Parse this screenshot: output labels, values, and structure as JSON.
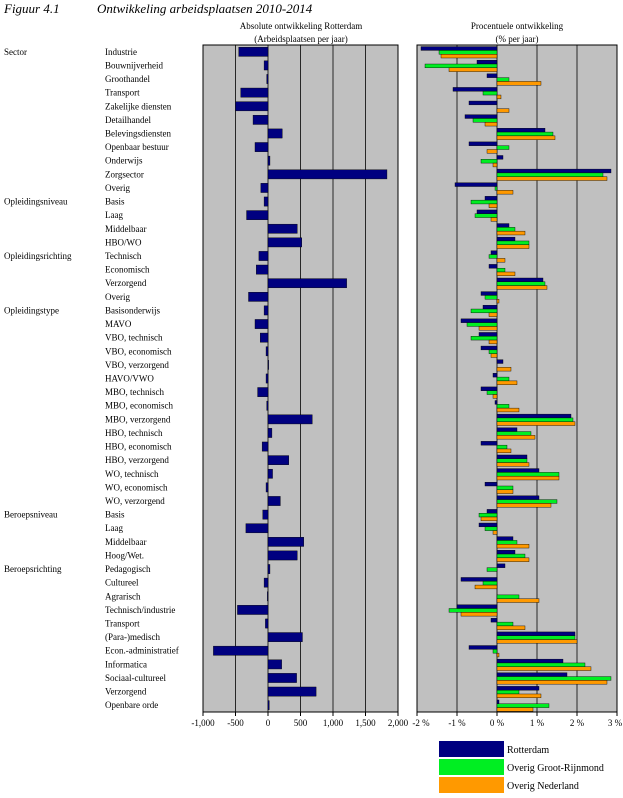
{
  "figure": {
    "label": "Figuur 4.1",
    "title": "Ontwikkeling arbeidsplaatsen 2010-2014"
  },
  "colors": {
    "rotterdam": "#000080",
    "groot_rijnmond": "#00ee22",
    "nederland": "#ff9900",
    "plot_bg": "#c0c0c0"
  },
  "chart_data": [
    {
      "type": "bar",
      "orientation": "horizontal",
      "title": "Absolute ontwikkeling Rotterdam",
      "subtitle": "(Arbeidsplaatsen per jaar)",
      "xlim": [
        -1000,
        2000
      ],
      "xticks": [
        "-1,000",
        "-500",
        "0",
        "500",
        "1,000",
        "1,500",
        "2,000"
      ],
      "xtick_values": [
        -1000,
        -500,
        0,
        500,
        1000,
        1500,
        2000
      ],
      "grid": true,
      "series": [
        {
          "name": "Rotterdam",
          "values": [
            -450,
            -60,
            -20,
            -420,
            -500,
            -230,
            220,
            -200,
            30,
            1830,
            -110,
            -60,
            -330,
            450,
            520,
            -140,
            -180,
            1210,
            -300,
            -60,
            -200,
            -120,
            -30,
            10,
            -30,
            -160,
            -20,
            680,
            60,
            -90,
            320,
            70,
            -30,
            190,
            -80,
            -340,
            550,
            450,
            30,
            -60,
            -10,
            -470,
            -40,
            530,
            -840,
            210,
            440,
            740,
            20
          ]
        }
      ]
    },
    {
      "type": "bar",
      "orientation": "horizontal",
      "title": "Procentuele ontwikkeling",
      "subtitle": "(% per jaar)",
      "xlim": [
        -2,
        3
      ],
      "xticks": [
        "-2 %",
        "-1 %",
        "0 %",
        "1 %",
        "2 %",
        "3 %"
      ],
      "xtick_values": [
        -2,
        -1,
        0,
        1,
        2,
        3
      ],
      "grid": true,
      "categories": [
        "Industrie",
        "Bouwnijverheid",
        "Groothandel",
        "Transport",
        "Zakelijke diensten",
        "Detailhandel",
        "Belevingsdiensten",
        "Openbaar bestuur",
        "Onderwijs",
        "Zorgsector",
        "Overig",
        "Basis",
        "Laag",
        "Middelbaar",
        "HBO/WO",
        "Technisch",
        "Economisch",
        "Verzorgend",
        "Overig",
        "Basisonderwijs",
        "MAVO",
        "VBO, technisch",
        "VBO, economisch",
        "VBO, verzorgend",
        "HAVO/VWO",
        "MBO, technisch",
        "MBO, economisch",
        "MBO, verzorgend",
        "HBO, technisch",
        "HBO, economisch",
        "HBO, verzorgend",
        "WO, technisch",
        "WO, economisch",
        "WO, verzorgend",
        "Basis",
        "Laag",
        "Middelbaar",
        "Hoog/Wet.",
        "Pedagogisch",
        "Cultureel",
        "Agrarisch",
        "Technisch/industrie",
        "Transport",
        "(Para-)medisch",
        "Econ.-administratief",
        "Informatica",
        "Sociaal-cultureel",
        "Verzorgend",
        "Openbare orde"
      ],
      "groups": [
        {
          "label": "Sector",
          "start": 0
        },
        {
          "label": "Opleidingsniveau",
          "start": 11
        },
        {
          "label": "Opleidingsrichting",
          "start": 15
        },
        {
          "label": "Opleidingstype",
          "start": 19
        },
        {
          "label": "Beroepsniveau",
          "start": 34
        },
        {
          "label": "Beroepsrichting",
          "start": 38
        }
      ],
      "series": [
        {
          "name": "Rotterdam",
          "values": [
            -1.9,
            -0.5,
            -0.25,
            -1.1,
            -0.7,
            -0.8,
            1.2,
            -0.7,
            0.15,
            2.85,
            -1.05,
            -0.3,
            -0.5,
            0.3,
            0.45,
            -0.15,
            -0.2,
            1.15,
            -0.4,
            -0.35,
            -0.9,
            -0.45,
            -0.4,
            0.15,
            -0.1,
            -0.4,
            -0.05,
            1.85,
            0.5,
            -0.4,
            0.75,
            1.05,
            -0.3,
            1.05,
            -0.25,
            -0.45,
            0.4,
            0.45,
            0.2,
            -0.9,
            0.0,
            -1.0,
            -0.15,
            1.95,
            -0.7,
            1.65,
            1.75,
            1.05,
            0.05
          ]
        },
        {
          "name": "Overig Groot-Rijnmond",
          "values": [
            -1.45,
            -1.8,
            0.3,
            -0.35,
            0.0,
            -0.6,
            1.4,
            0.3,
            -0.4,
            2.65,
            -0.05,
            -0.65,
            -0.55,
            0.45,
            0.8,
            -0.2,
            0.2,
            1.2,
            -0.3,
            -0.65,
            -0.75,
            -0.65,
            -0.2,
            0.0,
            0.3,
            -0.25,
            0.3,
            1.9,
            0.85,
            0.25,
            0.75,
            1.55,
            0.4,
            1.5,
            -0.45,
            -0.3,
            0.5,
            0.7,
            -0.25,
            -0.35,
            0.55,
            -1.2,
            0.4,
            1.95,
            -0.1,
            2.2,
            2.85,
            0.55,
            1.3
          ]
        },
        {
          "name": "Overig Nederland",
          "values": [
            -1.4,
            -1.2,
            1.1,
            0.1,
            0.3,
            -0.3,
            1.45,
            -0.25,
            -0.1,
            2.75,
            0.4,
            -0.2,
            -0.15,
            0.7,
            0.8,
            0.2,
            0.45,
            1.25,
            0.05,
            -0.2,
            -0.45,
            -0.2,
            -0.15,
            0.35,
            0.5,
            -0.1,
            0.55,
            1.95,
            0.95,
            0.35,
            0.8,
            1.55,
            0.4,
            1.35,
            -0.4,
            -0.1,
            0.8,
            0.8,
            0.0,
            -0.55,
            1.05,
            -0.9,
            0.7,
            2.0,
            0.05,
            2.35,
            2.75,
            1.1,
            0.9
          ]
        }
      ]
    }
  ],
  "legend": [
    {
      "label": "Rotterdam",
      "color": "#000080"
    },
    {
      "label": "Overig Groot-Rijnmond",
      "color": "#00ee22"
    },
    {
      "label": "Overig Nederland",
      "color": "#ff9900"
    }
  ]
}
